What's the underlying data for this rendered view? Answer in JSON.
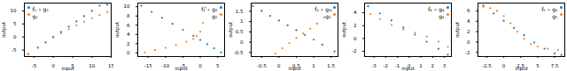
{
  "chart_data": [
    {
      "type": "scatter",
      "x_label": "input",
      "y_label": "output",
      "legend": "upper left",
      "xlim": [
        -7.5,
        15
      ],
      "ylim": [
        -7.5,
        13
      ],
      "xticks": [
        -5,
        0,
        5,
        10,
        15
      ],
      "yticks": [
        -5,
        0,
        5,
        10
      ],
      "series": [
        {
          "name": "f̂₁ ∘ g₁",
          "color": "#1f77b4",
          "marker": "circle",
          "x": [
            -6.5,
            -4,
            -2,
            0,
            2,
            4,
            6,
            8,
            10,
            12,
            14
          ],
          "values": [
            -6.5,
            -4,
            -2,
            0,
            2,
            4,
            6,
            8,
            10,
            12,
            12.4
          ]
        },
        {
          "name": "g₁",
          "color": "#ff7f0e",
          "marker": "circle",
          "x": [
            -6.5,
            -4,
            -2,
            0,
            2,
            4,
            6,
            8,
            10,
            12,
            14
          ],
          "values": [
            -6.6,
            -4.2,
            -2.2,
            -0.3,
            1.4,
            3,
            4.5,
            5.9,
            7.2,
            8.4,
            9.6
          ]
        }
      ]
    },
    {
      "type": "scatter",
      "x_label": "input",
      "y_label": "output",
      "legend": "upper right",
      "xlim": [
        -18,
        7
      ],
      "ylim": [
        -0.8,
        10.8
      ],
      "xticks": [
        -15,
        -10,
        -5,
        0,
        5
      ],
      "yticks": [
        0,
        2,
        4,
        6,
        8,
        10
      ],
      "series": [
        {
          "name": "f̂₂ ∘ g₂",
          "color": "#1f77b4",
          "marker": "circle",
          "x": [
            -17,
            -14,
            -11,
            -8,
            -5,
            -2,
            0,
            2,
            4,
            6
          ],
          "values": [
            10.2,
            8.9,
            7.6,
            6.3,
            5,
            3.7,
            2.8,
            1.9,
            1,
            0.1
          ]
        },
        {
          "name": "g₂",
          "color": "#ff7f0e",
          "marker": "circle",
          "x": [
            -16,
            -13,
            -10,
            -7,
            -4,
            -2,
            -1,
            0,
            0.8,
            1.5
          ],
          "values": [
            0.1,
            0.6,
            1.1,
            1.7,
            2.4,
            3,
            3.6,
            4.6,
            6.5,
            9.8
          ]
        }
      ]
    },
    {
      "type": "scatter",
      "x_label": "input",
      "y_label": "output",
      "legend": "upper right",
      "xlim": [
        -0.8,
        1.7
      ],
      "ylim": [
        -0.7,
        1.9
      ],
      "xticks": [
        -0.5,
        0,
        0.5,
        1,
        1.5
      ],
      "yticks": [
        -0.5,
        0,
        0.5,
        1,
        1.5
      ],
      "series": [
        {
          "name": "f̂₃ ∘ g₃",
          "color": "#1f77b4",
          "marker": "circle",
          "x": [
            -0.75,
            -0.5,
            -0.25,
            0,
            0.25,
            0.5,
            0.75,
            1,
            1.25,
            1.6
          ],
          "values": [
            1.75,
            1.52,
            1.28,
            1.05,
            0.82,
            0.58,
            0.35,
            0.12,
            -0.12,
            -0.45
          ]
        },
        {
          "name": "g₃",
          "color": "#ff7f0e",
          "marker": "circle",
          "x": [
            -0.1,
            0.1,
            0.3,
            0.5,
            0.7,
            0.9,
            1.1,
            1.3,
            1.5
          ],
          "values": [
            -0.55,
            -0.3,
            -0.05,
            0.2,
            0.42,
            0.65,
            0.9,
            1.2,
            1.55
          ]
        }
      ]
    },
    {
      "type": "scatter",
      "x_label": "input",
      "y_label": "output",
      "legend": "upper right",
      "xlim": [
        -3.8,
        3.6
      ],
      "ylim": [
        -2.8,
        5.5
      ],
      "xticks": [
        -3,
        -2,
        -1,
        0,
        1,
        2,
        3
      ],
      "yticks": [
        -2,
        0,
        2,
        4
      ],
      "series": [
        {
          "name": "f̂₄ ∘ g₄",
          "color": "#1f77b4",
          "marker": "circle",
          "x": [
            -3.5,
            -2.5,
            -1.5,
            -0.5,
            0.5,
            1.5,
            2.5,
            3.3
          ],
          "values": [
            5,
            3.9,
            2.8,
            1.7,
            0.6,
            -0.5,
            -1.6,
            -2.5
          ]
        },
        {
          "name": "g₄",
          "color": "#ff7f0e",
          "marker": "circle",
          "x": [
            -3.3,
            -2.5,
            -1.5,
            -0.5,
            0.5,
            1.5,
            2.5,
            3.3
          ],
          "values": [
            3.8,
            3,
            2.1,
            1.4,
            0.9,
            0.3,
            -0.5,
            -1.3
          ]
        }
      ]
    },
    {
      "type": "scatter",
      "x_label": "input",
      "y_label": "output",
      "legend": "upper right",
      "xlim": [
        -3.8,
        9
      ],
      "ylim": [
        -2.8,
        7.5
      ],
      "xticks": [
        -2.5,
        0,
        2.5,
        5,
        7.5
      ],
      "yticks": [
        -2,
        0,
        2,
        4,
        6
      ],
      "series": [
        {
          "name": "f̂₅ ∘ g₅",
          "color": "#1f77b4",
          "marker": "circle",
          "x": [
            -3,
            -1.5,
            0,
            1.5,
            3,
            4.5,
            6,
            7.5,
            8.5
          ],
          "values": [
            7,
            5.5,
            4.1,
            2.7,
            1.3,
            -0.1,
            -1.3,
            -2.2,
            -2.5
          ]
        },
        {
          "name": "g₅",
          "color": "#ff7f0e",
          "marker": "circle",
          "x": [
            -3,
            -2,
            -1,
            0,
            1,
            2,
            3,
            4,
            5,
            6.5,
            8
          ],
          "values": [
            6.8,
            6.5,
            6,
            5,
            3.6,
            2,
            0.6,
            -0.4,
            -0.9,
            -1.3,
            -1.5
          ]
        }
      ]
    }
  ]
}
